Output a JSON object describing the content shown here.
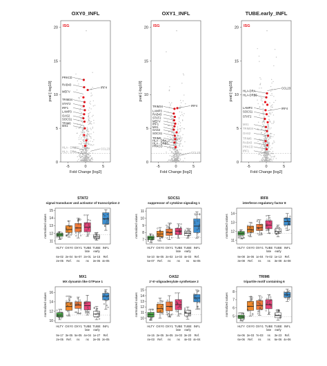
{
  "colors": {
    "highlight": "#e8141c",
    "background_points": "#b4b4b4",
    "HLTY": "#4daf4a",
    "OXY0": "#f08a2c",
    "OXY1": "#ef7a3a",
    "TUBE_late": "#e8427a",
    "TUBE_early": "#ffffff",
    "INFL": "#3d8fd1"
  },
  "volcano_common": {
    "xlabel": "Fold Change [log2]",
    "ylabel": "pval [-log10]",
    "xticks": [
      -5,
      0,
      5
    ],
    "yticks": [
      0,
      5,
      10,
      15,
      20
    ],
    "xlim": [
      -7,
      7
    ],
    "ylim": [
      0,
      21
    ],
    "legend": "ISG"
  },
  "chart_data": [
    {
      "type": "scatter",
      "title": "OXY0_INFL",
      "highlight_points": [
        {
          "x": -0.5,
          "y": 12.2
        },
        {
          "x": -0.4,
          "y": 11.1
        },
        {
          "x": -0.6,
          "y": 9.6
        },
        {
          "x": -0.3,
          "y": 8.9
        },
        {
          "x": -0.5,
          "y": 8.3
        },
        {
          "x": -0.2,
          "y": 7.7
        },
        {
          "x": -0.4,
          "y": 7.1
        },
        {
          "x": -0.6,
          "y": 6.5
        },
        {
          "x": -0.3,
          "y": 6.0
        },
        {
          "x": 0.6,
          "y": 10.7
        },
        {
          "x": -0.2,
          "y": 5.0
        },
        {
          "x": -0.4,
          "y": 4.0
        },
        {
          "x": 0.2,
          "y": 3.2
        },
        {
          "x": -0.1,
          "y": 2.4
        }
      ],
      "labels": [
        {
          "text": "PRKCD",
          "side": "left",
          "x": -0.5,
          "y": 12.2
        },
        {
          "text": "RAB43",
          "side": "left",
          "x": -0.4,
          "y": 11.1
        },
        {
          "text": "MEFV",
          "side": "left",
          "x": -0.6,
          "y": 10.1
        },
        {
          "text": "TRIM34",
          "side": "left",
          "x": -0.3,
          "y": 8.9
        },
        {
          "text": "STAT2",
          "side": "left",
          "x": -0.5,
          "y": 8.3
        },
        {
          "text": "IRF1",
          "side": "left",
          "x": -0.2,
          "y": 7.7
        },
        {
          "text": "LAMP3",
          "side": "left",
          "x": -0.4,
          "y": 7.1
        },
        {
          "text": "OAS2",
          "side": "left",
          "x": -0.6,
          "y": 6.5
        },
        {
          "text": "SOCS1",
          "side": "left",
          "x": -0.3,
          "y": 6.0
        },
        {
          "text": "TRIM6",
          "side": "left",
          "x": -0.4,
          "y": 5.4
        },
        {
          "text": "MX1",
          "side": "left",
          "x": -0.2,
          "y": 5.0
        },
        {
          "text": "IRF4",
          "side": "right",
          "x": 0.6,
          "y": 10.7
        }
      ],
      "grey_labels": [
        {
          "text": "HLA - DRB5",
          "side": "left",
          "x": -0.5,
          "y": 1.8
        },
        {
          "text": "HLA - DRA",
          "side": "left",
          "x": -0.6,
          "y": 1.2
        },
        {
          "text": "CCL23",
          "side": "right",
          "x": 1.4,
          "y": 1.6
        }
      ]
    },
    {
      "type": "scatter",
      "title": "OXY1_INFL",
      "highlight_points": [
        {
          "x": -0.4,
          "y": 7.9
        },
        {
          "x": -0.6,
          "y": 7.2
        },
        {
          "x": -0.3,
          "y": 6.7
        },
        {
          "x": -0.5,
          "y": 6.2
        },
        {
          "x": -0.2,
          "y": 5.7
        },
        {
          "x": -0.4,
          "y": 5.3
        },
        {
          "x": -0.6,
          "y": 4.8
        },
        {
          "x": 0.4,
          "y": 8.0
        },
        {
          "x": -0.3,
          "y": 3.9
        },
        {
          "x": -0.2,
          "y": 3.4
        },
        {
          "x": -0.4,
          "y": 2.9
        },
        {
          "x": -0.1,
          "y": 2.2
        },
        {
          "x": 0.2,
          "y": 4.4
        }
      ],
      "labels": [
        {
          "text": "TRIM34",
          "side": "left",
          "x": -0.4,
          "y": 7.9
        },
        {
          "text": "LAMP3",
          "side": "left",
          "x": -0.6,
          "y": 7.2
        },
        {
          "text": "RAB43",
          "side": "left",
          "x": -0.3,
          "y": 6.7
        },
        {
          "text": "STAT2",
          "side": "left",
          "x": -0.5,
          "y": 6.2
        },
        {
          "text": "MEFV",
          "side": "left",
          "x": -0.2,
          "y": 5.7
        },
        {
          "text": "IRF1",
          "side": "left",
          "x": -0.4,
          "y": 5.3
        },
        {
          "text": "MX1",
          "side": "left",
          "x": -0.6,
          "y": 4.8
        },
        {
          "text": "OAS2",
          "side": "left",
          "x": -0.3,
          "y": 4.4
        },
        {
          "text": "SOCS1",
          "side": "left",
          "x": -0.2,
          "y": 3.9
        },
        {
          "text": "TRIM6",
          "side": "left",
          "x": -0.4,
          "y": 3.2
        },
        {
          "text": "HLA - DRA",
          "side": "left",
          "x": -0.2,
          "y": 2.8
        },
        {
          "text": "HLA - DRB5",
          "side": "left",
          "x": -0.4,
          "y": 2.4
        },
        {
          "text": "PRKCD",
          "side": "left",
          "x": -0.1,
          "y": 2.0
        },
        {
          "text": "IRF4",
          "side": "right",
          "x": 0.4,
          "y": 8.0
        }
      ],
      "grey_labels": [
        {
          "text": "CCL23",
          "side": "right",
          "x": 1.4,
          "y": 1.0
        }
      ]
    },
    {
      "type": "scatter",
      "title": "TUBE.early_INFL",
      "highlight_points": [
        {
          "x": 0.2,
          "y": 10.2
        },
        {
          "x": 0.0,
          "y": 9.6
        },
        {
          "x": -0.3,
          "y": 8.9
        },
        {
          "x": 0.3,
          "y": 8.5
        },
        {
          "x": -0.2,
          "y": 7.7
        },
        {
          "x": 0.1,
          "y": 7.1
        },
        {
          "x": -0.4,
          "y": 6.4
        },
        {
          "x": 0.4,
          "y": 5.9
        },
        {
          "x": -0.1,
          "y": 5.2
        },
        {
          "x": 0.2,
          "y": 4.6
        },
        {
          "x": 0.5,
          "y": 3.9
        },
        {
          "x": -0.2,
          "y": 3.1
        },
        {
          "x": 0.3,
          "y": 2.5
        },
        {
          "x": 0.1,
          "y": 1.9
        }
      ],
      "labels": [
        {
          "text": "HLA-DRA",
          "side": "left",
          "x": 0.2,
          "y": 10.2
        },
        {
          "text": "HLA-DRB5",
          "side": "left",
          "x": 0.0,
          "y": 9.6
        },
        {
          "text": "LAMP3",
          "side": "left",
          "x": -0.3,
          "y": 7.7
        },
        {
          "text": "SOCS1",
          "side": "left",
          "x": -0.2,
          "y": 7.1
        },
        {
          "text": "STAT2",
          "side": "left",
          "x": -0.4,
          "y": 6.4
        },
        {
          "text": "CCL23",
          "side": "right",
          "x": 0.3,
          "y": 10.6
        },
        {
          "text": "IRF4",
          "side": "right",
          "x": 0.4,
          "y": 7.6
        }
      ],
      "grey_labels": [
        {
          "text": "MX1",
          "side": "left",
          "x": -0.1,
          "y": 5.2
        },
        {
          "text": "TRIM34",
          "side": "left",
          "x": 0.2,
          "y": 4.6
        },
        {
          "text": "OAS2",
          "side": "left",
          "x": 0.5,
          "y": 3.9
        },
        {
          "text": "TRIM6",
          "side": "left",
          "x": -0.2,
          "y": 3.1
        },
        {
          "text": "RAB43",
          "side": "left",
          "x": 0.3,
          "y": 2.5
        },
        {
          "text": "PRKCD",
          "side": "left",
          "x": 0.1,
          "y": 1.9
        },
        {
          "text": "IRF1",
          "side": "left",
          "x": 0.1,
          "y": 1.3
        }
      ]
    },
    {
      "type": "box",
      "title": "STAT2",
      "subtitle": "signal transducer and activator of transcription 2",
      "ylabel": "normalized values",
      "yticks": [
        11,
        12,
        13,
        14,
        15
      ],
      "ylim": [
        10.6,
        15.3
      ],
      "groups": [
        {
          "name": "HLTY",
          "q1": 11.6,
          "median": 11.8,
          "q3": 12.0,
          "min": 11.2,
          "max": 12.2
        },
        {
          "name": "OXY0",
          "q1": 12.1,
          "median": 12.5,
          "q3": 13.0,
          "min": 11.5,
          "max": 13.6
        },
        {
          "name": "OXY1",
          "q1": 12.2,
          "median": 12.7,
          "q3": 13.3,
          "min": 11.4,
          "max": 14.0
        },
        {
          "name": "TUBE late",
          "q1": 12.2,
          "median": 12.8,
          "q3": 13.4,
          "min": 11.6,
          "max": 14.4
        },
        {
          "name": "TUBE early",
          "q1": 11.4,
          "median": 11.6,
          "q3": 11.8,
          "min": 11.1,
          "max": 12.1
        },
        {
          "name": "INFL",
          "q1": 13.2,
          "median": 13.9,
          "q3": 14.7,
          "min": 12.4,
          "max": 15.1
        }
      ],
      "stats_row1": [
        "6e-02",
        "2e-04",
        "5e-07",
        "2e-01",
        "1e-15",
        "Ref."
      ],
      "stats_row2": [
        "2e-05",
        "Ref.",
        "ns",
        "ns",
        "2e-05",
        "4e-05"
      ]
    },
    {
      "type": "box",
      "title": "SOCS1",
      "subtitle": "suppressor of cytokine signaling 1",
      "ylabel": "normalized values",
      "yticks": [
        7,
        8,
        9,
        10,
        11
      ],
      "ylim": [
        6.4,
        11.4
      ],
      "groups": [
        {
          "name": "HLTY",
          "q1": 7.0,
          "median": 7.3,
          "q3": 7.5,
          "min": 6.6,
          "max": 7.8
        },
        {
          "name": "OXY0",
          "q1": 7.4,
          "median": 7.8,
          "q3": 8.2,
          "min": 6.8,
          "max": 8.7
        },
        {
          "name": "OXY1",
          "q1": 7.6,
          "median": 8.0,
          "q3": 8.5,
          "min": 7.0,
          "max": 9.3
        },
        {
          "name": "TUBE late",
          "q1": 7.7,
          "median": 8.2,
          "q3": 8.6,
          "min": 7.2,
          "max": 9.2
        },
        {
          "name": "TUBE early",
          "q1": 7.6,
          "median": 7.9,
          "q3": 8.2,
          "min": 7.2,
          "max": 8.6
        },
        {
          "name": "INFL",
          "q1": 8.0,
          "median": 8.9,
          "q3": 9.9,
          "min": 7.2,
          "max": 10.9
        }
      ],
      "stats_row1": [
        "5e-10",
        "6e-05",
        "2e-02",
        "1e-03",
        "4e-03",
        "Ref."
      ],
      "stats_row2": [
        "5e-07",
        "Ref.",
        "ns",
        "ns",
        "ns",
        "6e-05"
      ]
    },
    {
      "type": "box",
      "title": "IRF8",
      "subtitle": "interferon regulatory factor 8",
      "ylabel": "normalized values",
      "yticks": [
        11,
        12,
        13,
        14
      ],
      "ylim": [
        10.6,
        14.6
      ],
      "groups": [
        {
          "name": "HLTY",
          "q1": 11.6,
          "median": 11.8,
          "q3": 12.0,
          "min": 11.2,
          "max": 12.2
        },
        {
          "name": "OXY0",
          "q1": 11.9,
          "median": 12.2,
          "q3": 12.6,
          "min": 11.4,
          "max": 13.0
        },
        {
          "name": "OXY1",
          "q1": 12.1,
          "median": 12.4,
          "q3": 12.8,
          "min": 11.6,
          "max": 13.3
        },
        {
          "name": "TUBE late",
          "q1": 12.3,
          "median": 12.7,
          "q3": 13.2,
          "min": 11.8,
          "max": 13.8
        },
        {
          "name": "TUBE early",
          "q1": 11.8,
          "median": 12.0,
          "q3": 12.3,
          "min": 11.4,
          "max": 12.7
        },
        {
          "name": "INFL",
          "q1": 12.7,
          "median": 13.1,
          "q3": 13.5,
          "min": 12.1,
          "max": 14.0
        }
      ],
      "stats_row1": [
        "9e-08",
        "2e-06",
        "1e-04",
        "7e-02",
        "1e-13",
        "Ref."
      ],
      "stats_row2": [
        "3e-08",
        "Ref.",
        "ns",
        "ns",
        "3e-08",
        "4e-08"
      ]
    },
    {
      "type": "box",
      "title": "MX1",
      "subtitle": "MX dynamin like GTPase 1",
      "ylabel": "normalized values",
      "yticks": [
        10,
        12,
        14,
        16
      ],
      "ylim": [
        9.6,
        17.2
      ],
      "groups": [
        {
          "name": "HLTY",
          "q1": 10.8,
          "median": 11.2,
          "q3": 11.7,
          "min": 10.2,
          "max": 12.4
        },
        {
          "name": "OXY0",
          "q1": 12.2,
          "median": 13.0,
          "q3": 13.9,
          "min": 11.0,
          "max": 15.2
        },
        {
          "name": "OXY1",
          "q1": 12.6,
          "median": 13.3,
          "q3": 14.0,
          "min": 11.5,
          "max": 15.0
        },
        {
          "name": "TUBE late",
          "q1": 12.3,
          "median": 13.2,
          "q3": 14.0,
          "min": 11.2,
          "max": 15.4
        },
        {
          "name": "TUBE early",
          "q1": 10.9,
          "median": 11.4,
          "q3": 12.0,
          "min": 10.2,
          "max": 13.0
        },
        {
          "name": "INFL",
          "q1": 14.4,
          "median": 15.2,
          "q3": 15.8,
          "min": 12.4,
          "max": 16.6
        }
      ],
      "stats_row1": [
        "9e-17",
        "3e-05",
        "5e-05",
        "4e-04",
        "1e-27",
        "Ref."
      ],
      "stats_row2": [
        "2e-05",
        "Ref.",
        "ns",
        "ns",
        "2e-05",
        "2e-05"
      ]
    },
    {
      "type": "box",
      "title": "OAS2",
      "subtitle": "2'-5'-oligoadenylate synthetase 2",
      "ylabel": "normalized values",
      "yticks": [
        10,
        11,
        12,
        13,
        14,
        15
      ],
      "ylim": [
        9.2,
        15.6
      ],
      "groups": [
        {
          "name": "HLTY",
          "q1": 10.2,
          "median": 10.6,
          "q3": 11.0,
          "min": 9.6,
          "max": 11.6
        },
        {
          "name": "OXY0",
          "q1": 11.0,
          "median": 11.7,
          "q3": 12.5,
          "min": 10.0,
          "max": 13.6
        },
        {
          "name": "OXY1",
          "q1": 11.3,
          "median": 12.1,
          "q3": 12.9,
          "min": 10.2,
          "max": 14.0
        },
        {
          "name": "TUBE late",
          "q1": 11.5,
          "median": 12.4,
          "q3": 13.3,
          "min": 10.4,
          "max": 14.5
        },
        {
          "name": "TUBE early",
          "q1": 10.4,
          "median": 10.9,
          "q3": 11.4,
          "min": 9.8,
          "max": 12.0
        },
        {
          "name": "INFL",
          "q1": 12.9,
          "median": 13.6,
          "q3": 14.2,
          "min": 11.6,
          "max": 15.0
        }
      ],
      "stats_row1": [
        "4e-15",
        "2e-05",
        "3e-05",
        "2e-03",
        "3e-20",
        "Ref."
      ],
      "stats_row2": [
        "4e-03",
        "Ref.",
        "ns",
        "ns",
        "4e-03",
        "4e-04"
      ]
    },
    {
      "type": "box",
      "title": "TRIM6",
      "subtitle": "tripartite motif containing 6",
      "ylabel": "normalized values",
      "yticks": [
        5,
        6,
        7,
        8
      ],
      "ylim": [
        4.2,
        8.6
      ],
      "groups": [
        {
          "name": "HLTY",
          "q1": 4.7,
          "median": 4.9,
          "q3": 5.1,
          "min": 4.4,
          "max": 5.4
        },
        {
          "name": "OXY0",
          "q1": 5.7,
          "median": 6.2,
          "q3": 6.8,
          "min": 5.0,
          "max": 7.4
        },
        {
          "name": "OXY1",
          "q1": 5.8,
          "median": 6.3,
          "q3": 6.9,
          "min": 5.1,
          "max": 7.5
        },
        {
          "name": "TUBE late",
          "q1": 5.9,
          "median": 6.4,
          "q3": 7.0,
          "min": 5.2,
          "max": 7.6
        },
        {
          "name": "TUBE early",
          "q1": 4.8,
          "median": 5.1,
          "q3": 5.4,
          "min": 4.5,
          "max": 5.8
        },
        {
          "name": "INFL",
          "q1": 7.3,
          "median": 7.6,
          "q3": 7.9,
          "min": 6.8,
          "max": 8.3
        }
      ],
      "stats_row1": [
        "6e-06",
        "2e-03",
        "7e-03",
        "ns",
        "3e-23",
        "Ref."
      ],
      "stats_row2": [
        "6e-06",
        "Ref.",
        "ns",
        "ns",
        "6e-06",
        "4e-06"
      ]
    }
  ],
  "box_common": {
    "group_labels": [
      "HLTY",
      "OXY0",
      "OXY1",
      "TUBE late",
      "TUBE early",
      "INFL"
    ]
  }
}
